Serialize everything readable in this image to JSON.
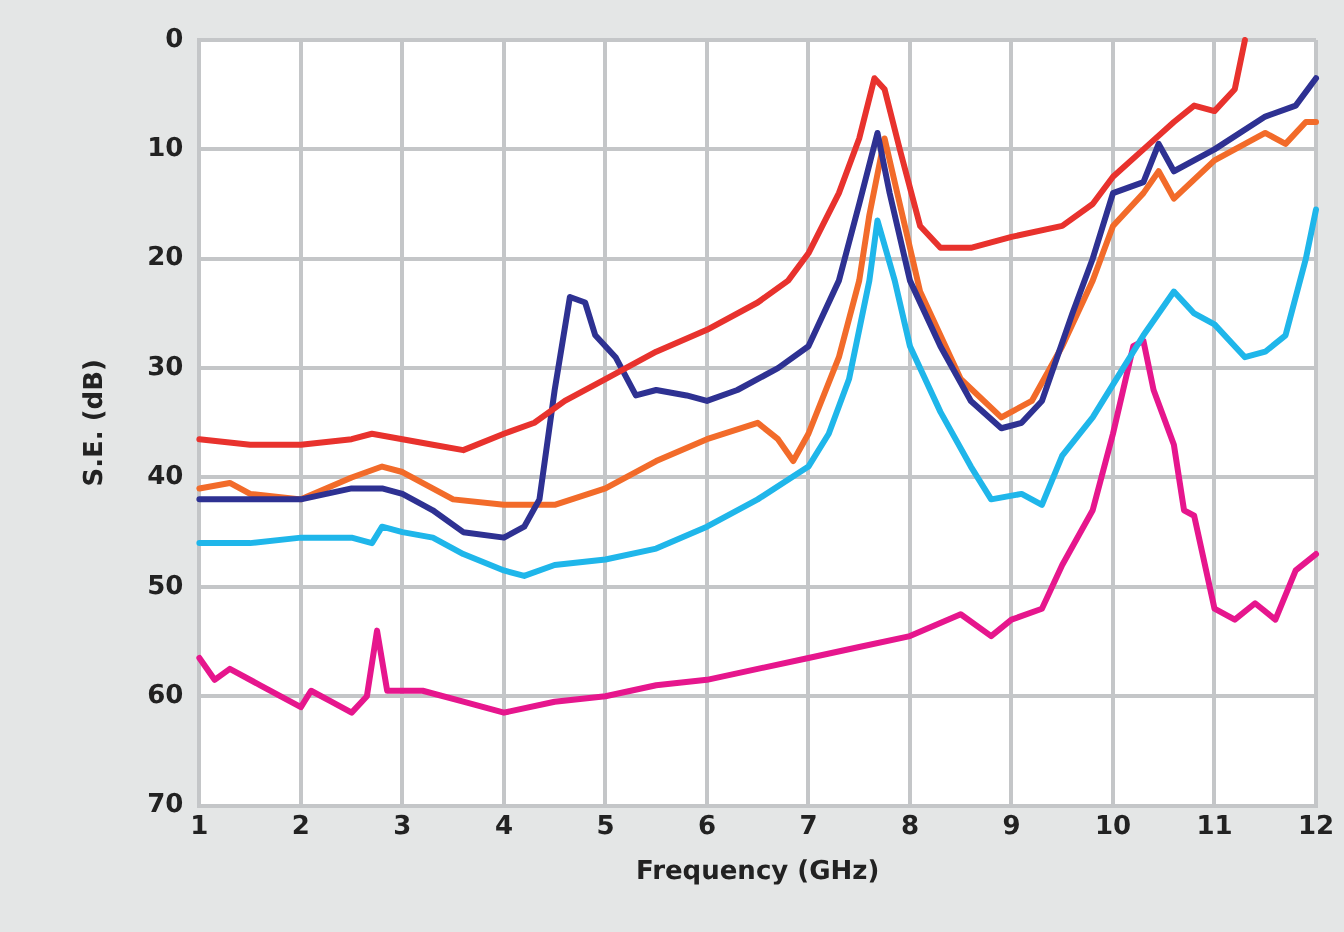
{
  "chart_data": {
    "type": "line",
    "xlabel": "Frequency (GHz)",
    "ylabel": "S.E. (dB)",
    "xlim": [
      1,
      12
    ],
    "xticks": [
      1,
      2,
      3,
      4,
      5,
      6,
      7,
      8,
      9,
      10,
      11,
      12
    ],
    "ylim": [
      70,
      0
    ],
    "yticks": [
      0,
      10,
      20,
      30,
      40,
      50,
      60,
      70
    ],
    "grid": true,
    "legend": false,
    "marker": "none",
    "line_style": "solid",
    "series": [
      {
        "color": "#e8322d",
        "x": [
          1,
          1.5,
          2,
          2.5,
          2.7,
          3,
          3.3,
          3.6,
          4,
          4.3,
          4.6,
          5,
          5.5,
          6,
          6.5,
          6.8,
          7,
          7.3,
          7.5,
          7.65,
          7.75,
          7.9,
          8.1,
          8.3,
          8.6,
          9,
          9.5,
          9.8,
          10,
          10.3,
          10.6,
          10.8,
          11,
          11.2,
          11.3
        ],
        "values": [
          36.5,
          37,
          37,
          36.5,
          36,
          36.5,
          37,
          37.5,
          36,
          35,
          33,
          31,
          28.5,
          26.5,
          24,
          22,
          19.5,
          14,
          9,
          3.5,
          4.5,
          10,
          17,
          19,
          19,
          18,
          17,
          15,
          12.5,
          10,
          7.5,
          6,
          6.5,
          4.5,
          0
        ]
      },
      {
        "color": "#2e3192",
        "x": [
          1,
          1.5,
          2,
          2.5,
          2.8,
          3,
          3.3,
          3.6,
          4,
          4.2,
          4.35,
          4.5,
          4.65,
          4.8,
          4.9,
          5.1,
          5.3,
          5.5,
          5.8,
          6,
          6.3,
          6.7,
          7,
          7.3,
          7.5,
          7.68,
          7.8,
          8,
          8.3,
          8.6,
          8.9,
          9.1,
          9.3,
          9.6,
          9.8,
          10,
          10.3,
          10.45,
          10.6,
          11,
          11.5,
          11.8,
          12
        ],
        "values": [
          42,
          42,
          42,
          41,
          41,
          41.5,
          43,
          45,
          45.5,
          44.5,
          42,
          32,
          23.5,
          24,
          27,
          29,
          32.5,
          32,
          32.5,
          33,
          32,
          30,
          28,
          22,
          15,
          8.5,
          14,
          22,
          28,
          33,
          35.5,
          35,
          33,
          25,
          20,
          14,
          13,
          9.5,
          12,
          10,
          7,
          6,
          3.5
        ]
      },
      {
        "color": "#f26b2a",
        "x": [
          1,
          1.3,
          1.5,
          2,
          2.5,
          2.8,
          3,
          3.5,
          4,
          4.5,
          5,
          5.5,
          6,
          6.5,
          6.7,
          6.85,
          7,
          7.3,
          7.5,
          7.6,
          7.75,
          7.9,
          8.1,
          8.5,
          8.9,
          9.2,
          9.5,
          9.8,
          10,
          10.3,
          10.45,
          10.6,
          11,
          11.5,
          11.7,
          11.9,
          12
        ],
        "values": [
          41,
          40.5,
          41.5,
          42,
          40,
          39,
          39.5,
          42,
          42.5,
          42.5,
          41,
          38.5,
          36.5,
          35,
          36.5,
          38.5,
          36,
          29,
          22,
          16,
          9,
          15,
          23,
          31,
          34.5,
          33,
          28,
          22,
          17,
          14,
          12,
          14.5,
          11,
          8.5,
          9.5,
          7.5,
          7.5
        ]
      },
      {
        "color": "#1fb6ea",
        "x": [
          1,
          1.5,
          2,
          2.5,
          2.7,
          2.8,
          3,
          3.3,
          3.6,
          4,
          4.2,
          4.5,
          5,
          5.5,
          6,
          6.5,
          7,
          7.2,
          7.4,
          7.6,
          7.68,
          7.85,
          8,
          8.3,
          8.6,
          8.8,
          9.1,
          9.3,
          9.5,
          9.8,
          10.1,
          10.3,
          10.6,
          10.8,
          11,
          11.3,
          11.5,
          11.7,
          11.9,
          12
        ],
        "values": [
          46,
          46,
          45.5,
          45.5,
          46,
          44.5,
          45,
          45.5,
          47,
          48.5,
          49,
          48,
          47.5,
          46.5,
          44.5,
          42,
          39,
          36,
          31,
          22,
          16.5,
          22,
          28,
          34,
          39,
          42,
          41.5,
          42.5,
          38,
          34.5,
          30,
          27,
          23,
          25,
          26,
          29,
          28.5,
          27,
          20,
          15.5
        ]
      },
      {
        "color": "#e6168d",
        "x": [
          1,
          1.15,
          1.3,
          1.6,
          2,
          2.1,
          2.3,
          2.5,
          2.65,
          2.75,
          2.85,
          3.2,
          3.6,
          4,
          4.5,
          5,
          5.5,
          6,
          6.5,
          7,
          7.5,
          8,
          8.5,
          8.8,
          9,
          9.3,
          9.5,
          9.8,
          10,
          10.1,
          10.2,
          10.3,
          10.4,
          10.6,
          10.7,
          10.8,
          11,
          11.2,
          11.4,
          11.6,
          11.8,
          12
        ],
        "values": [
          56.5,
          58.5,
          57.5,
          59,
          61,
          59.5,
          60.5,
          61.5,
          60,
          54,
          59.5,
          59.5,
          60.5,
          61.5,
          60.5,
          60,
          59,
          58.5,
          57.5,
          56.5,
          55.5,
          54.5,
          52.5,
          54.5,
          53,
          52,
          48,
          43,
          36,
          32,
          28,
          27.5,
          32,
          37,
          43,
          43.5,
          52,
          53,
          51.5,
          53,
          48.5,
          47
        ]
      }
    ]
  }
}
